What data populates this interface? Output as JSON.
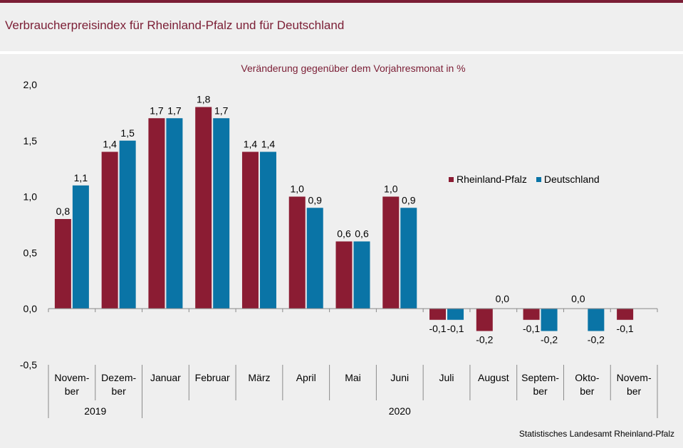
{
  "header": {
    "title": "Verbraucherpreisindex für Rheinland-Pfalz und für Deutschland"
  },
  "source": "Statistisches Landesamt  Rheinland-Pfalz",
  "colors": {
    "rlp": "#8b1c33",
    "de": "#0a74a6",
    "accent": "#7b1e35"
  },
  "chart_data": {
    "type": "bar",
    "title": "Veränderung gegenüber dem Vorjahresmonat  in %",
    "xlabel": "",
    "ylabel": "",
    "ylim": [
      -0.5,
      2.0
    ],
    "y_ticks": [
      "2,0",
      "1,5",
      "1,0",
      "0,5",
      "0,0",
      "-0,5"
    ],
    "legend_position": "right",
    "categories": [
      [
        "Novem-",
        "ber"
      ],
      [
        "Dezem-",
        "ber"
      ],
      [
        "Januar"
      ],
      [
        "Februar"
      ],
      [
        "März"
      ],
      [
        "April"
      ],
      [
        "Mai"
      ],
      [
        "Juni"
      ],
      [
        "Juli"
      ],
      [
        "August"
      ],
      [
        "Septem-",
        "ber"
      ],
      [
        "Okto-",
        "ber"
      ],
      [
        "Novem-",
        "ber"
      ]
    ],
    "years": [
      {
        "label": "2019",
        "span": [
          0,
          1
        ]
      },
      {
        "label": "2020",
        "span": [
          2,
          12
        ]
      }
    ],
    "series": [
      {
        "name": "Rheinland-Pfalz",
        "values": [
          0.8,
          1.4,
          1.7,
          1.8,
          1.4,
          1.0,
          0.6,
          1.0,
          -0.1,
          -0.2,
          -0.1,
          0.0,
          -0.1
        ],
        "labels": [
          "0,8",
          "1,4",
          "1,7",
          "1,8",
          "1,4",
          "1,0",
          "0,6",
          "1,0",
          "-0,1",
          "-0,2",
          "-0,1",
          "0,0",
          "-0,1"
        ]
      },
      {
        "name": "Deutschland",
        "values": [
          1.1,
          1.5,
          1.7,
          1.7,
          1.4,
          0.9,
          0.6,
          0.9,
          -0.1,
          0.0,
          -0.2,
          -0.2,
          null
        ],
        "labels": [
          "1,1",
          "1,5",
          "1,7",
          "1,7",
          "1,4",
          "0,9",
          "0,6",
          "0,9",
          "-0,1",
          "0,0",
          "-0,2",
          "-0,2",
          ""
        ]
      }
    ]
  }
}
